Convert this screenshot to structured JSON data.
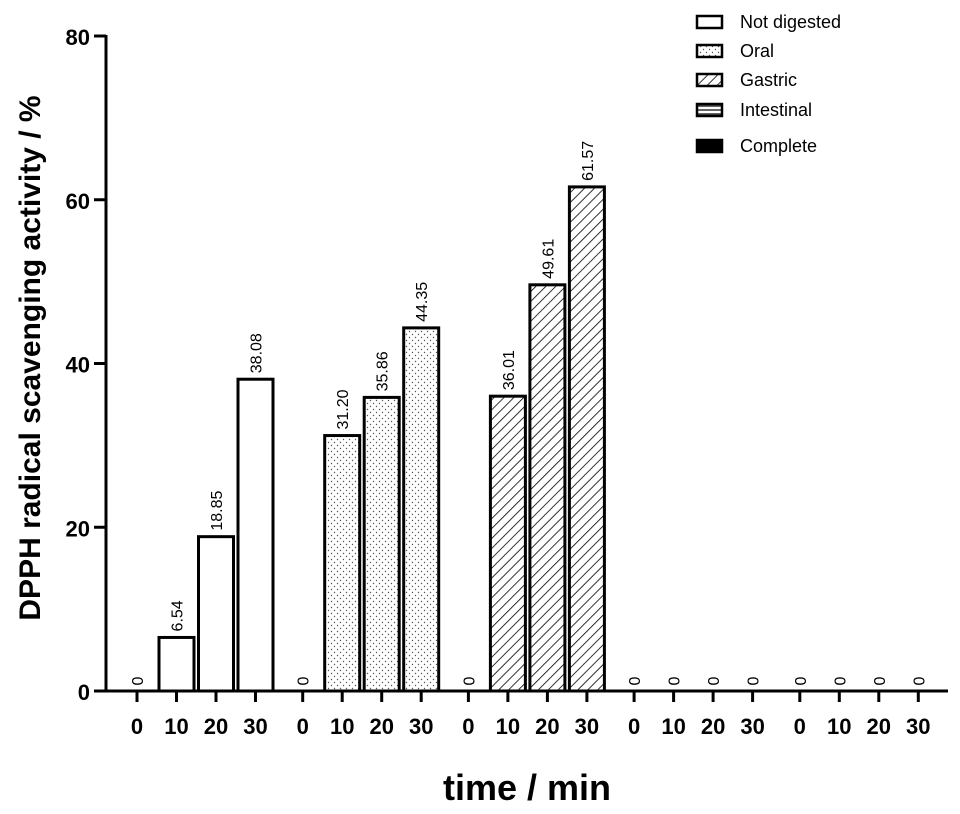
{
  "chart_data": {
    "type": "bar",
    "title": "",
    "xlabel": "time / min",
    "ylabel": "DPPH radical scavenging activity / %",
    "ylim": [
      0,
      80
    ],
    "yticks": [
      0,
      20,
      40,
      60,
      80
    ],
    "grid": false,
    "legend_position": "top-right",
    "categories": [
      "0",
      "10",
      "20",
      "30"
    ],
    "series": [
      {
        "name": "Not digested",
        "pattern": "none",
        "values": [
          0,
          6.54,
          18.85,
          38.08
        ],
        "labels": [
          "0",
          "6.54",
          "18.85",
          "38.08"
        ]
      },
      {
        "name": "Oral",
        "pattern": "dots",
        "values": [
          0,
          31.2,
          35.86,
          44.35
        ],
        "labels": [
          "0",
          "31.20",
          "35.86",
          "44.35"
        ]
      },
      {
        "name": "Gastric",
        "pattern": "diagonal",
        "values": [
          0,
          36.01,
          49.61,
          61.57
        ],
        "labels": [
          "0",
          "36.01",
          "49.61",
          "61.57"
        ]
      },
      {
        "name": "Intestinal",
        "pattern": "horizontal",
        "values": [
          0,
          0,
          0,
          0
        ],
        "labels": [
          "0",
          "0",
          "0",
          "0"
        ]
      },
      {
        "name": "Complete",
        "pattern": "solid",
        "values": [
          0,
          0,
          0,
          0
        ],
        "labels": [
          "0",
          "0",
          "0",
          "0"
        ]
      }
    ]
  },
  "colors": {
    "stroke": "#000000",
    "fill": "#ffffff",
    "dots": "#555555"
  }
}
